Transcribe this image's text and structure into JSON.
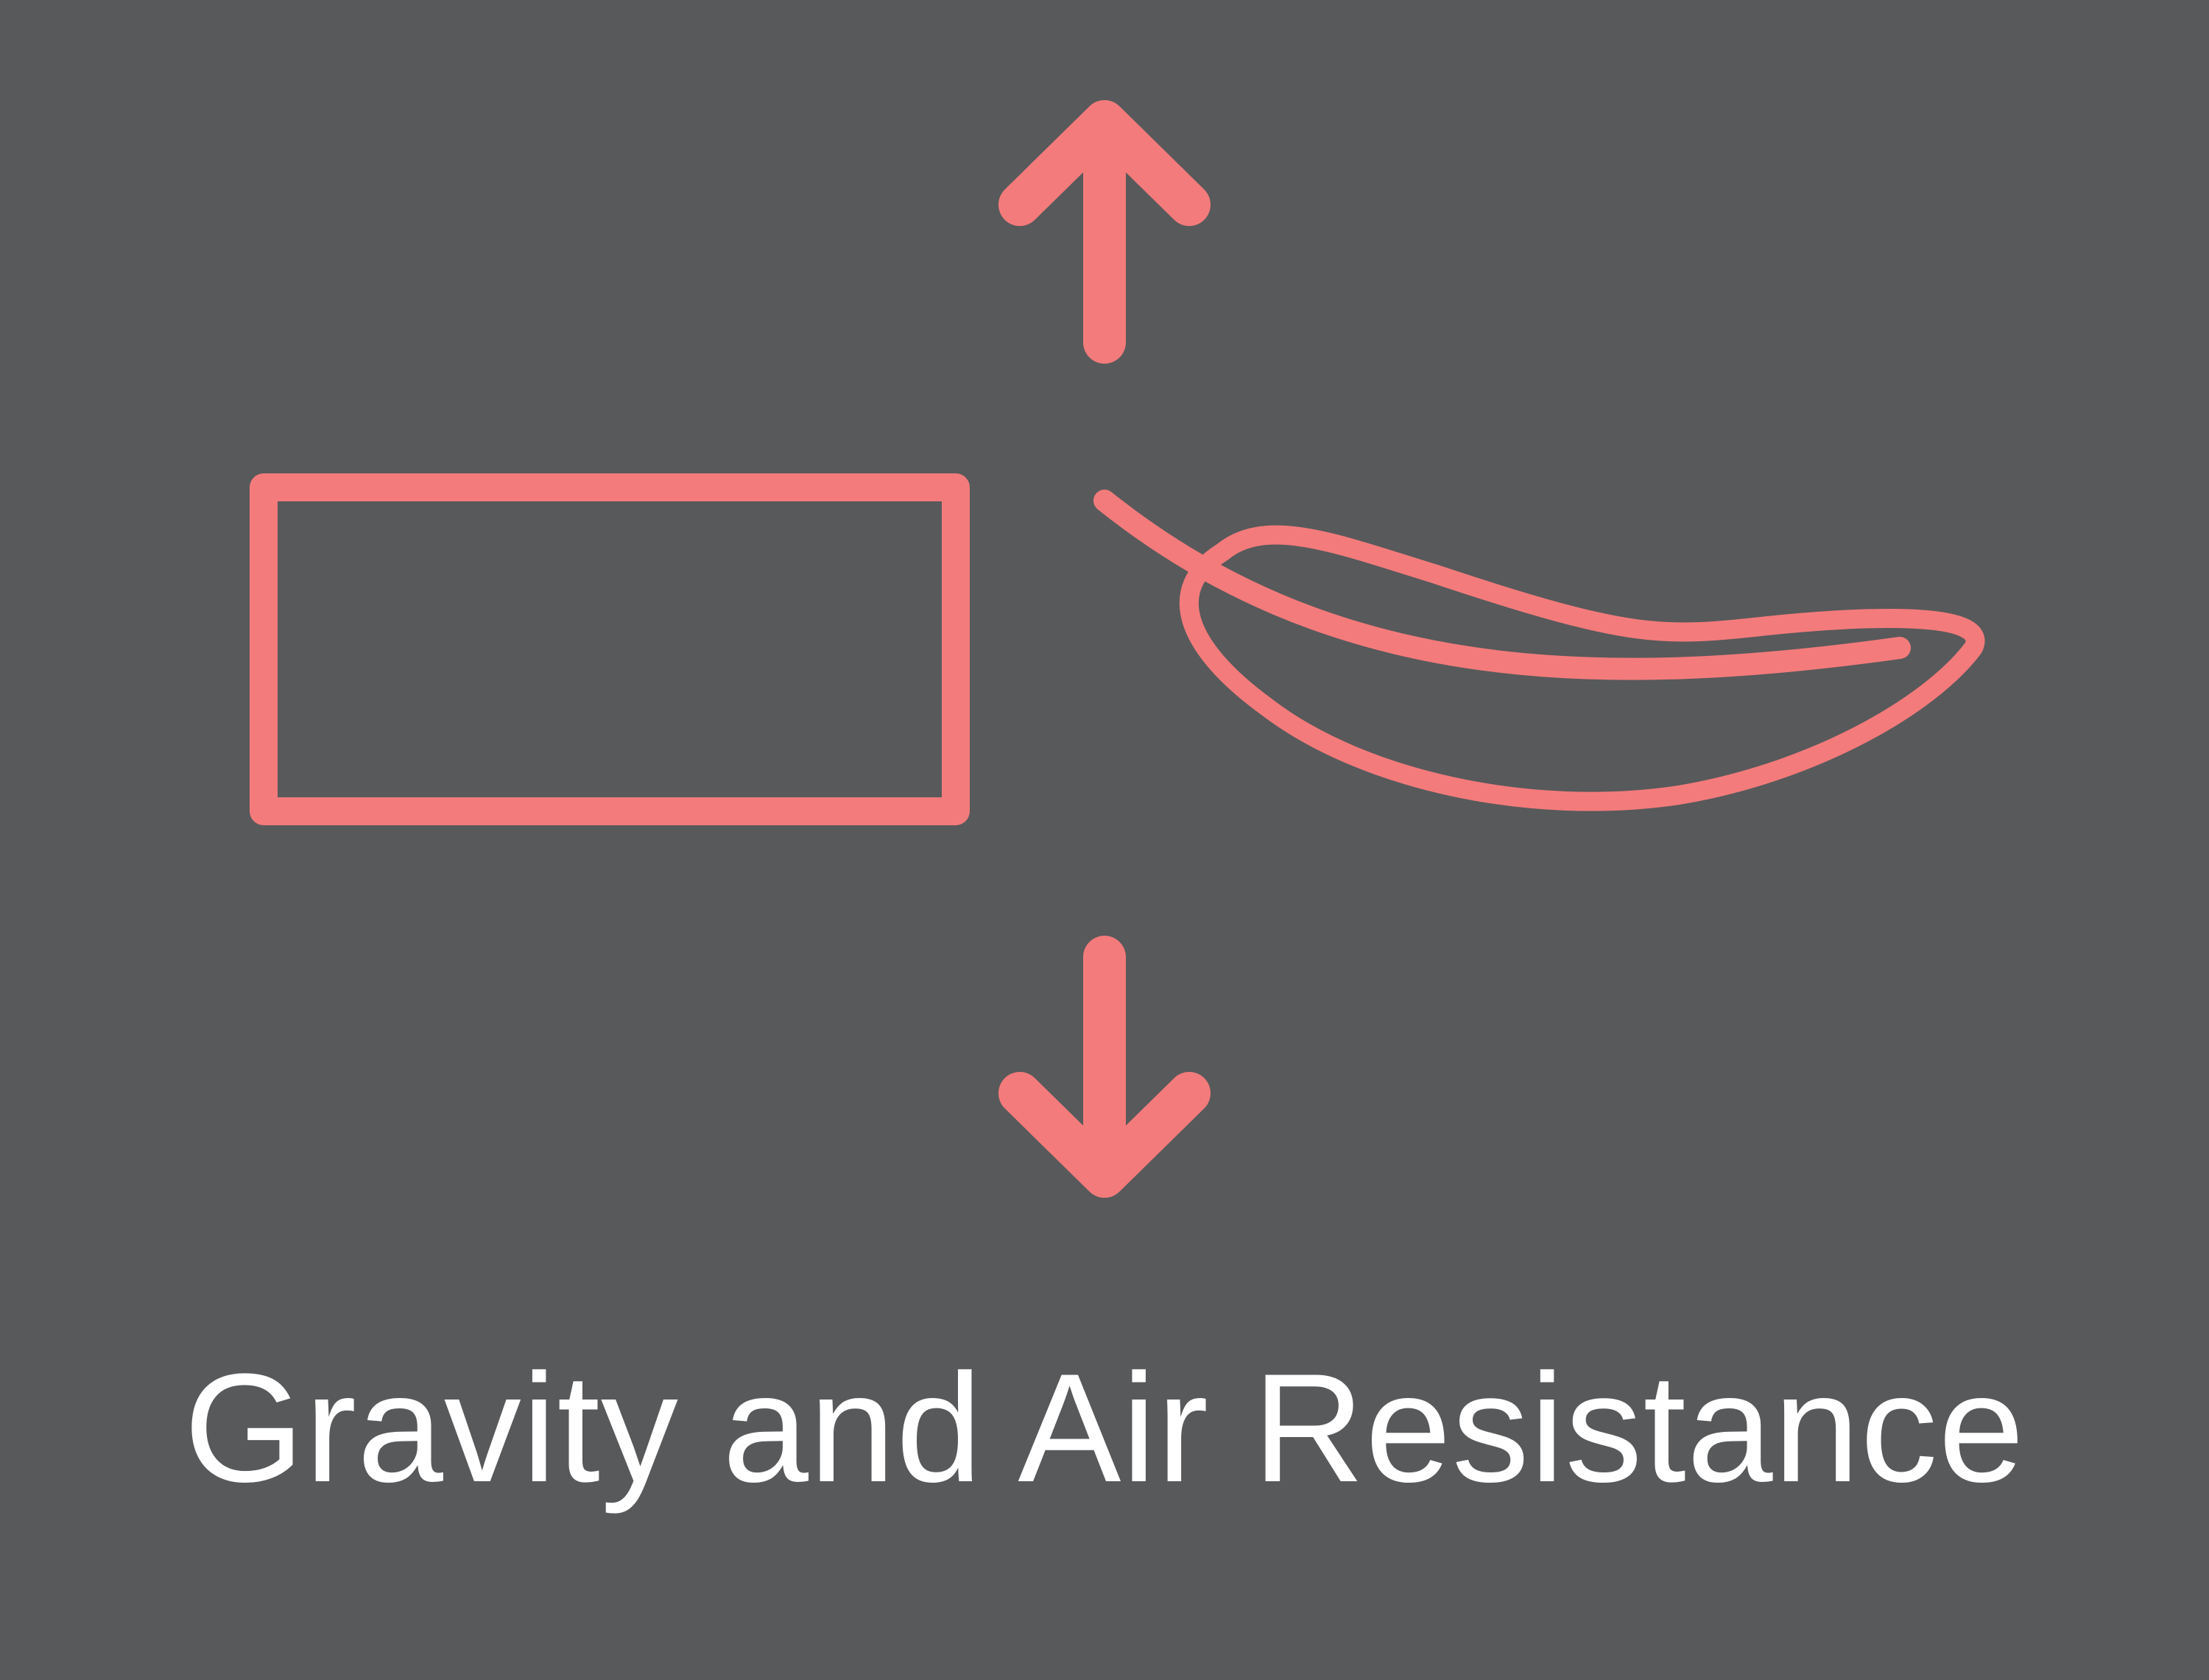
{
  "title": "Gravity and Air Resistance",
  "colors": {
    "background": "#58595b",
    "accent": "#f47b7b",
    "text": "#ffffff"
  },
  "icons": {
    "up_arrow": "arrow-up-icon",
    "down_arrow": "arrow-down-icon",
    "box": "rectangle-box-icon",
    "feather": "feather-icon"
  }
}
